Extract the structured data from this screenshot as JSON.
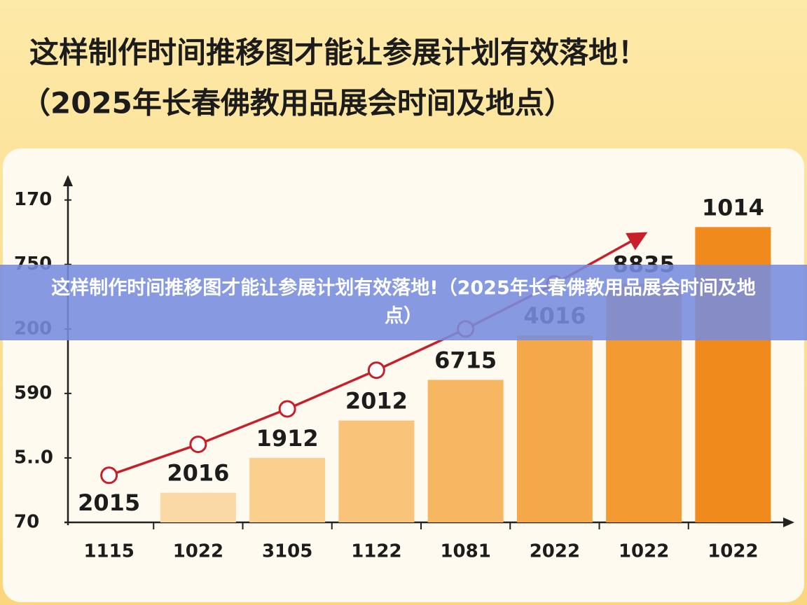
{
  "chart_data": {
    "type": "bar",
    "title": "这样制作时间推移图才能让参展计划有效落地！",
    "subtitle": "（2025年长春佛教用品展会时间及地点）",
    "banner": "这样制作时间推移图才能让参展计划有效落地!（2025年长春佛教用品展会时间及地点）",
    "categories": [
      "1115",
      "1022",
      "3105",
      "1122",
      "1081",
      "2022",
      "1022",
      "1022"
    ],
    "series": [
      {
        "type": "bar",
        "colors": [
          "#fbd9a4",
          "#fbd9a4",
          "#fbd08e",
          "#f9c479",
          "#f7b662",
          "#f5a849",
          "#f39a33",
          "#f08a1c"
        ],
        "values": [
          null,
          0.46,
          1.0,
          1.58,
          2.21,
          2.9,
          3.7,
          4.58
        ],
        "bar_labels": [
          "2015",
          "2016",
          "1912",
          "2012",
          "6715",
          "4016",
          "8835",
          "1014"
        ]
      },
      {
        "type": "line",
        "color": "#c8202a",
        "values": [
          0.73,
          1.21,
          1.76,
          2.36,
          3.0,
          3.7,
          4.47,
          null
        ]
      }
    ],
    "ylim": [
      0,
      5.3
    ],
    "yticks": [
      {
        "value": 0,
        "label": "70"
      },
      {
        "value": 1,
        "label": "5..0"
      },
      {
        "value": 2,
        "label": "590"
      },
      {
        "value": 3,
        "label": "200"
      },
      {
        "value": 4,
        "label": "750"
      },
      {
        "value": 5,
        "label": "170"
      }
    ]
  }
}
